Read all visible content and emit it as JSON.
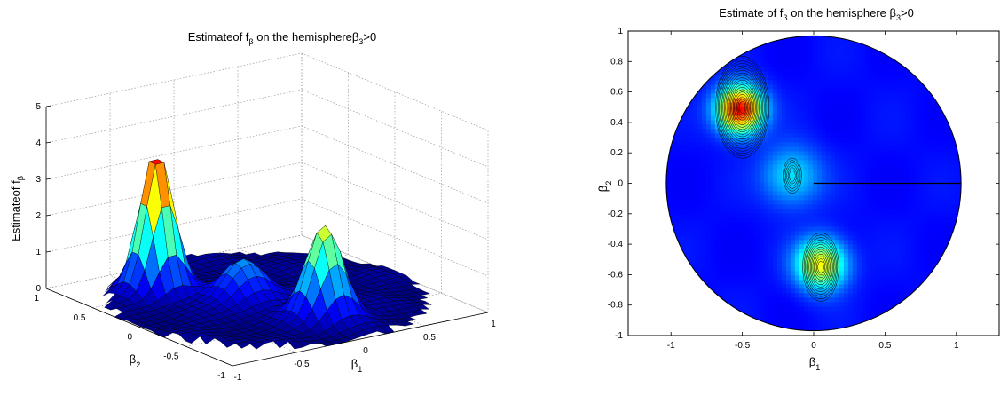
{
  "chart_data": [
    {
      "type": "surface",
      "title": "Estimateof f",
      "title_sub": "β",
      "title_rest": " on the hemisphereβ",
      "title_sub2": "3",
      "title_end": ">0",
      "zlabel": "Estimateof f",
      "zlabel_sub": "β",
      "xlabel": "β",
      "xlabel_sub": "1",
      "ylabel": "β",
      "ylabel_sub": "2",
      "zlim": [
        0,
        5
      ],
      "zticks": [
        "0",
        "1",
        "2",
        "3",
        "4",
        "5"
      ],
      "xticks": [
        "-1",
        "-0.5",
        "0",
        "0.5",
        "1"
      ],
      "yticks": [
        "-1",
        "-0.5",
        "0",
        "0.5",
        "1"
      ],
      "grid": true,
      "colormap": "jet",
      "peaks": [
        {
          "beta1": -0.5,
          "beta2": 0.5,
          "height": 4.0
        },
        {
          "beta1": 0.05,
          "beta2": -0.55,
          "height": 2.6
        },
        {
          "beta1": -0.15,
          "beta2": 0.05,
          "height": 1.2
        }
      ]
    },
    {
      "type": "contour",
      "title": "Estimate of f",
      "title_sub": "β",
      "title_rest": " on the hemisphere β",
      "title_sub2": "3",
      "title_end": ">0",
      "xlabel": "β",
      "xlabel_sub": "1",
      "ylabel": "β",
      "ylabel_sub": "2",
      "xlim": [
        -1.3,
        1.3
      ],
      "ylim": [
        -1,
        1
      ],
      "xticks": [
        "-1",
        "-0.5",
        "0",
        "0.5",
        "1"
      ],
      "yticks": [
        "-1",
        "-0.8",
        "-0.6",
        "-0.4",
        "-0.2",
        "0",
        "0.2",
        "0.4",
        "0.6",
        "0.8",
        "1"
      ],
      "colormap": "jet",
      "peaks": [
        {
          "beta1": -0.5,
          "beta2": 0.5,
          "height": 4.0
        },
        {
          "beta1": 0.05,
          "beta2": -0.55,
          "height": 2.6
        },
        {
          "beta1": -0.15,
          "beta2": 0.05,
          "height": 1.2
        }
      ]
    }
  ]
}
